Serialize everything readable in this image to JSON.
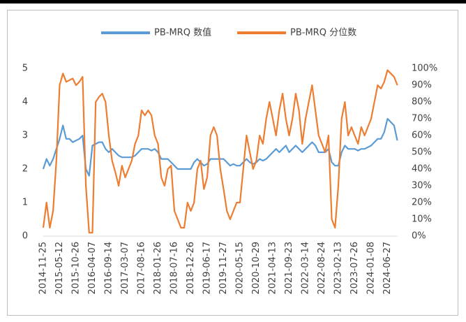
{
  "chart_data": {
    "type": "line",
    "categories": [
      "2014-11-25",
      null,
      null,
      null,
      null,
      "2015-05-12",
      null,
      null,
      null,
      null,
      "2015-10-26",
      null,
      null,
      null,
      null,
      "2016-04-07",
      null,
      null,
      null,
      null,
      "2016-09-14",
      null,
      null,
      null,
      null,
      "2017-03-07",
      null,
      null,
      null,
      null,
      "2017-08-16",
      null,
      null,
      null,
      null,
      "2018-01-26",
      null,
      null,
      null,
      null,
      "2018-07-16",
      null,
      null,
      null,
      null,
      "2018-12-26",
      null,
      null,
      null,
      null,
      "2019-06-17",
      null,
      null,
      null,
      null,
      "2019-11-27",
      null,
      null,
      null,
      null,
      "2020-05-15",
      null,
      null,
      null,
      null,
      "2020-10-29",
      null,
      null,
      null,
      null,
      "2021-04-13",
      null,
      null,
      null,
      null,
      "2021-09-23",
      null,
      null,
      null,
      null,
      "2022-03-14",
      null,
      null,
      null,
      null,
      "2022-08-24",
      null,
      null,
      null,
      null,
      "2023-02-13",
      null,
      null,
      null,
      null,
      "2023-07-26",
      null,
      null,
      null,
      null,
      "2024-01-08",
      null,
      null,
      null,
      null,
      "2024-06-27",
      null,
      null,
      null
    ],
    "series": [
      {
        "name": "PB-MRQ 数值",
        "color": "#5b9bd5",
        "values": [
          2.0,
          2.3,
          2.1,
          2.3,
          2.6,
          2.9,
          3.3,
          2.9,
          2.9,
          2.8,
          2.85,
          2.9,
          3.0,
          2.0,
          1.8,
          2.7,
          2.75,
          2.8,
          2.8,
          2.6,
          2.5,
          2.6,
          2.5,
          2.4,
          2.35,
          2.35,
          2.35,
          2.35,
          2.4,
          2.5,
          2.6,
          2.6,
          2.6,
          2.55,
          2.6,
          2.5,
          2.3,
          2.3,
          2.3,
          2.2,
          2.1,
          2.0,
          2.0,
          2.0,
          2.0,
          2.0,
          2.2,
          2.3,
          2.2,
          2.1,
          2.15,
          2.3,
          2.3,
          2.3,
          2.3,
          2.3,
          2.2,
          2.1,
          2.15,
          2.1,
          2.1,
          2.2,
          2.3,
          2.2,
          2.15,
          2.2,
          2.3,
          2.25,
          2.3,
          2.4,
          2.5,
          2.6,
          2.5,
          2.6,
          2.7,
          2.5,
          2.6,
          2.7,
          2.6,
          2.5,
          2.6,
          2.7,
          2.8,
          2.7,
          2.5,
          2.5,
          2.5,
          2.6,
          2.2,
          2.1,
          2.1,
          2.5,
          2.7,
          2.6,
          2.6,
          2.6,
          2.55,
          2.6,
          2.6,
          2.65,
          2.7,
          2.8,
          2.9,
          2.9,
          3.1,
          3.5,
          3.4,
          3.3,
          2.85
        ]
      },
      {
        "name": "PB-MRQ 分位数",
        "color": "#ed7d31",
        "axis": "y2",
        "values": [
          5,
          20,
          5,
          15,
          45,
          90,
          97,
          92,
          93,
          94,
          90,
          92,
          95,
          30,
          2,
          2,
          80,
          83,
          85,
          80,
          60,
          45,
          38,
          30,
          42,
          35,
          40,
          45,
          55,
          60,
          75,
          72,
          75,
          72,
          60,
          55,
          35,
          30,
          40,
          42,
          15,
          10,
          5,
          5,
          20,
          15,
          20,
          40,
          45,
          28,
          35,
          60,
          65,
          60,
          40,
          28,
          15,
          10,
          15,
          20,
          20,
          40,
          60,
          50,
          40,
          45,
          60,
          55,
          70,
          80,
          70,
          60,
          75,
          85,
          70,
          60,
          70,
          85,
          75,
          55,
          70,
          80,
          90,
          75,
          60,
          55,
          50,
          60,
          10,
          5,
          30,
          70,
          80,
          60,
          65,
          60,
          55,
          65,
          60,
          65,
          70,
          80,
          90,
          88,
          92,
          99,
          97,
          95,
          90
        ]
      }
    ],
    "ylim": [
      0,
      5
    ],
    "yticks": [
      0,
      1,
      2,
      3,
      4,
      5
    ],
    "y2lim": [
      0,
      100
    ],
    "y2ticks": [
      {
        "value": 0,
        "label": "0%"
      },
      {
        "value": 10,
        "label": "10%"
      },
      {
        "value": 20,
        "label": "20%"
      },
      {
        "value": 30,
        "label": "30%"
      },
      {
        "value": 40,
        "label": "40%"
      },
      {
        "value": 50,
        "label": "50%"
      },
      {
        "value": 60,
        "label": "60%"
      },
      {
        "value": 70,
        "label": "70%"
      },
      {
        "value": 80,
        "label": "80%"
      },
      {
        "value": 90,
        "label": "90%"
      },
      {
        "value": 100,
        "label": "100%"
      }
    ],
    "legend": "top"
  }
}
